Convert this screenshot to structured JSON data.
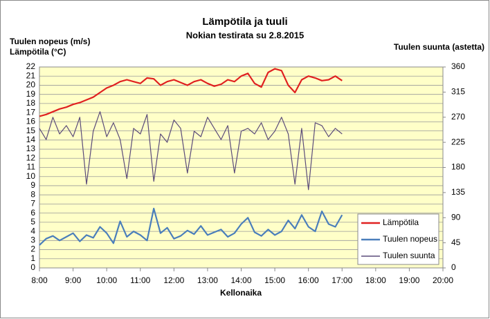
{
  "chart_data": {
    "type": "line",
    "title": "Lämpötila ja tuuli",
    "subtitle": "Nokian testirata su 2.8.2015",
    "y_label": [
      "Tuulen nopeus (m/s)",
      "Lämpötila (°C)"
    ],
    "y2_label": "Tuulen suunta (astetta)",
    "x_label": "Kellonaika",
    "xlim": [
      8,
      20
    ],
    "xticks": [
      {
        "value": 8,
        "label": "8:00"
      },
      {
        "value": 9,
        "label": "9:00"
      },
      {
        "value": 10,
        "label": "10:00"
      },
      {
        "value": 11,
        "label": "11:00"
      },
      {
        "value": 12,
        "label": "12:00"
      },
      {
        "value": 13,
        "label": "13:00"
      },
      {
        "value": 14,
        "label": "14:00"
      },
      {
        "value": 15,
        "label": "15:00"
      },
      {
        "value": 16,
        "label": "16:00"
      },
      {
        "value": 17,
        "label": "17:00"
      },
      {
        "value": 18,
        "label": "18:00"
      },
      {
        "value": 19,
        "label": "19:00"
      },
      {
        "value": 20,
        "label": "20:00"
      }
    ],
    "ylim": [
      0,
      22
    ],
    "yticks": [
      0,
      1,
      2,
      3,
      4,
      5,
      6,
      7,
      8,
      9,
      10,
      11,
      12,
      13,
      14,
      15,
      16,
      17,
      18,
      19,
      20,
      21,
      22
    ],
    "y2lim": [
      0,
      360
    ],
    "y2ticks": [
      0,
      45,
      90,
      135,
      180,
      225,
      270,
      315,
      360
    ],
    "grid": true,
    "legend": "lower right",
    "x": [
      8,
      8.2,
      8.4,
      8.6,
      8.8,
      9,
      9.2,
      9.4,
      9.6,
      9.8,
      10,
      10.2,
      10.4,
      10.6,
      10.8,
      11,
      11.2,
      11.4,
      11.6,
      11.8,
      12,
      12.2,
      12.4,
      12.6,
      12.8,
      13,
      13.2,
      13.4,
      13.6,
      13.8,
      14,
      14.2,
      14.4,
      14.6,
      14.8,
      15,
      15.2,
      15.4,
      15.6,
      15.8,
      16,
      16.2,
      16.4,
      16.6,
      16.8,
      17
    ],
    "series": [
      {
        "name": "Lämpötila",
        "color": "#e02020",
        "width": 2.2,
        "values": [
          16.6,
          16.8,
          17.1,
          17.4,
          17.6,
          17.9,
          18.1,
          18.4,
          18.7,
          19.2,
          19.7,
          20.0,
          20.4,
          20.6,
          20.4,
          20.2,
          20.8,
          20.7,
          20.0,
          20.4,
          20.6,
          20.3,
          20.0,
          20.4,
          20.6,
          20.2,
          19.9,
          20.1,
          20.6,
          20.4,
          21.0,
          21.3,
          20.2,
          19.8,
          21.4,
          21.8,
          21.6,
          20.0,
          19.2,
          20.6,
          21.0,
          20.8,
          20.5,
          20.6,
          21.0,
          20.5
        ]
      },
      {
        "name": "Tuulen nopeus",
        "color": "#4a7ebb",
        "width": 2.2,
        "values": [
          2.5,
          3.2,
          3.5,
          3.0,
          3.4,
          3.8,
          2.9,
          3.6,
          3.3,
          4.5,
          3.8,
          2.7,
          5.1,
          3.4,
          4.0,
          3.6,
          3.0,
          6.5,
          3.8,
          4.4,
          3.2,
          3.5,
          4.1,
          3.7,
          4.6,
          3.6,
          3.9,
          4.2,
          3.4,
          3.8,
          4.8,
          5.5,
          3.9,
          3.5,
          4.2,
          3.6,
          4.0,
          5.2,
          4.3,
          5.8,
          4.5,
          4.0,
          6.2,
          4.8,
          4.5,
          5.8
        ]
      },
      {
        "name": "Tuulen suunta",
        "color": "#5a4a7a",
        "width": 1.2,
        "axis": "y2",
        "values": [
          250,
          230,
          270,
          240,
          255,
          235,
          270,
          150,
          245,
          280,
          235,
          260,
          230,
          160,
          250,
          240,
          275,
          155,
          240,
          225,
          265,
          250,
          170,
          245,
          235,
          270,
          250,
          230,
          255,
          170,
          245,
          250,
          240,
          260,
          230,
          245,
          270,
          240,
          150,
          250,
          140,
          260,
          255,
          235,
          250,
          240
        ]
      }
    ]
  }
}
